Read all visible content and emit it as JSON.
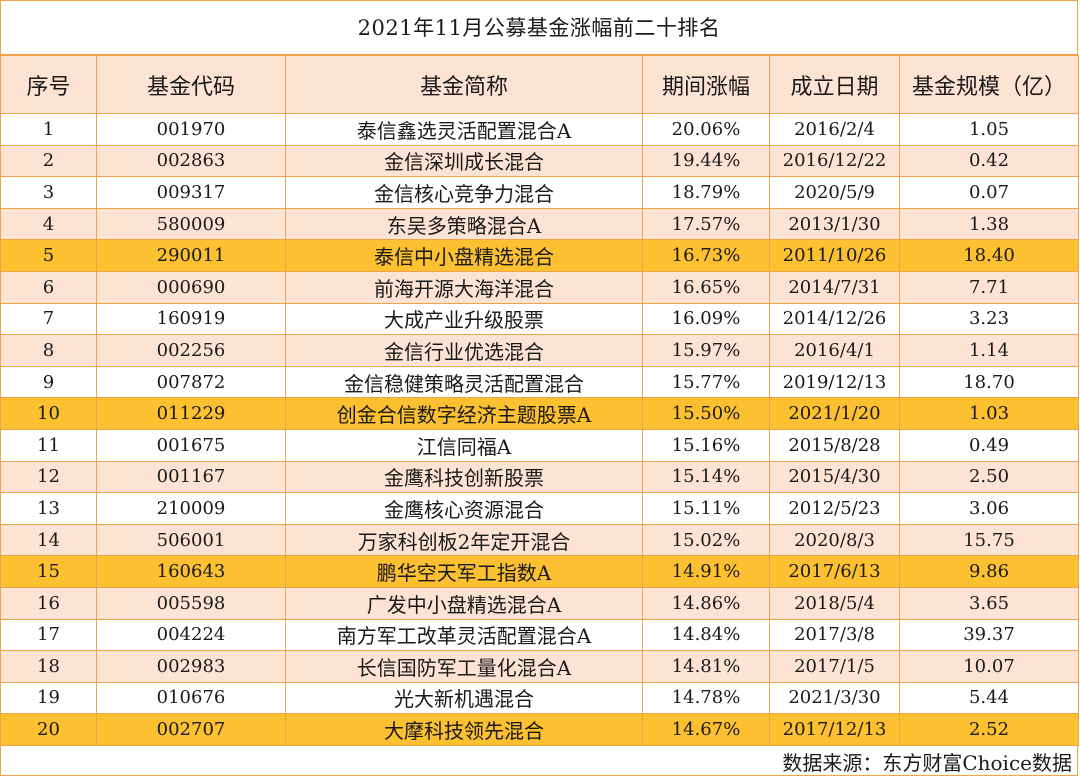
{
  "title": "2021年11月公募基金涨幅前二十排名",
  "headers": [
    "序号",
    "基金代码",
    "基金简称",
    "期间涨幅",
    "成立日期",
    "基金规模（亿）"
  ],
  "rows": [
    {
      "no": "1",
      "code": "001970",
      "name": "泰信鑫选灵活配置混合A",
      "change": "20.06%",
      "date": "2016/2/4",
      "size": "1.05",
      "highlight": false
    },
    {
      "no": "2",
      "code": "002863",
      "name": "金信深圳成长混合",
      "change": "19.44%",
      "date": "2016/12/22",
      "size": "0.42",
      "highlight": false
    },
    {
      "no": "3",
      "code": "009317",
      "name": "金信核心竞争力混合",
      "change": "18.79%",
      "date": "2020/5/9",
      "size": "0.07",
      "highlight": false
    },
    {
      "no": "4",
      "code": "580009",
      "name": "东吴多策略混合A",
      "change": "17.57%",
      "date": "2013/1/30",
      "size": "1.38",
      "highlight": false
    },
    {
      "no": "5",
      "code": "290011",
      "name": "泰信中小盘精选混合",
      "change": "16.73%",
      "date": "2011/10/26",
      "size": "18.40",
      "highlight": true
    },
    {
      "no": "6",
      "code": "000690",
      "name": "前海开源大海洋混合",
      "change": "16.65%",
      "date": "2014/7/31",
      "size": "7.71",
      "highlight": false
    },
    {
      "no": "7",
      "code": "160919",
      "name": "大成产业升级股票",
      "change": "16.09%",
      "date": "2014/12/26",
      "size": "3.23",
      "highlight": false
    },
    {
      "no": "8",
      "code": "002256",
      "name": "金信行业优选混合",
      "change": "15.97%",
      "date": "2016/4/1",
      "size": "1.14",
      "highlight": false
    },
    {
      "no": "9",
      "code": "007872",
      "name": "金信稳健策略灵活配置混合",
      "change": "15.77%",
      "date": "2019/12/13",
      "size": "18.70",
      "highlight": false
    },
    {
      "no": "10",
      "code": "011229",
      "name": "创金合信数字经济主题股票A",
      "change": "15.50%",
      "date": "2021/1/20",
      "size": "1.03",
      "highlight": true
    },
    {
      "no": "11",
      "code": "001675",
      "name": "江信同福A",
      "change": "15.16%",
      "date": "2015/8/28",
      "size": "0.49",
      "highlight": false
    },
    {
      "no": "12",
      "code": "001167",
      "name": "金鹰科技创新股票",
      "change": "15.14%",
      "date": "2015/4/30",
      "size": "2.50",
      "highlight": false
    },
    {
      "no": "13",
      "code": "210009",
      "name": "金鹰核心资源混合",
      "change": "15.11%",
      "date": "2012/5/23",
      "size": "3.06",
      "highlight": false
    },
    {
      "no": "14",
      "code": "506001",
      "name": "万家科创板2年定开混合",
      "change": "15.02%",
      "date": "2020/8/3",
      "size": "15.75",
      "highlight": false
    },
    {
      "no": "15",
      "code": "160643",
      "name": "鹏华空天军工指数A",
      "change": "14.91%",
      "date": "2017/6/13",
      "size": "9.86",
      "highlight": true
    },
    {
      "no": "16",
      "code": "005598",
      "name": "广发中小盘精选混合A",
      "change": "14.86%",
      "date": "2018/5/4",
      "size": "3.65",
      "highlight": false
    },
    {
      "no": "17",
      "code": "004224",
      "name": "南方军工改革灵活配置混合A",
      "change": "14.84%",
      "date": "2017/3/8",
      "size": "39.37",
      "highlight": false
    },
    {
      "no": "18",
      "code": "002983",
      "name": "长信国防军工量化混合A",
      "change": "14.81%",
      "date": "2017/1/5",
      "size": "10.07",
      "highlight": false
    },
    {
      "no": "19",
      "code": "010676",
      "name": "光大新机遇混合",
      "change": "14.78%",
      "date": "2021/3/30",
      "size": "5.44",
      "highlight": false
    },
    {
      "no": "20",
      "code": "002707",
      "name": "大摩科技领先混合",
      "change": "14.67%",
      "date": "2017/12/13",
      "size": "2.52",
      "highlight": true
    }
  ],
  "source": "数据来源：东方财富Choice数据",
  "colors": {
    "border": "#f0a44a",
    "stripe": "#fde3d3",
    "highlight": "#fcc031"
  }
}
